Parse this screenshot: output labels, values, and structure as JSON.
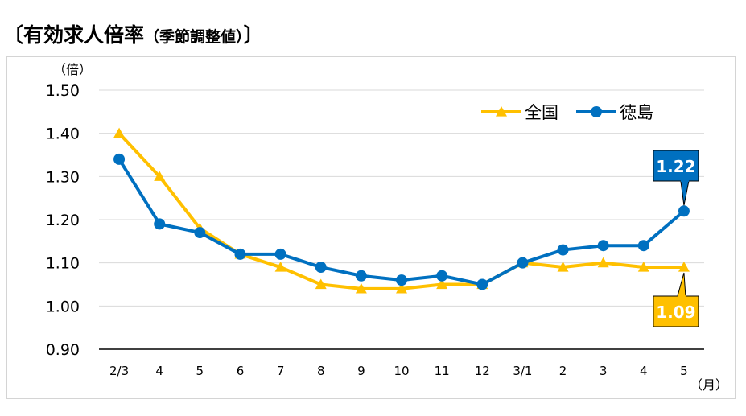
{
  "title": {
    "main": "〔有効求人倍率",
    "sub": "（季節調整値）",
    "close": "〕"
  },
  "chart_data": {
    "type": "line",
    "x": [
      "2/3",
      "4",
      "5",
      "6",
      "7",
      "8",
      "9",
      "10",
      "11",
      "12",
      "3/1",
      "2",
      "3",
      "4",
      "5"
    ],
    "series": [
      {
        "name": "全国",
        "color": "#FFC000",
        "values": [
          1.4,
          1.3,
          1.18,
          1.12,
          1.09,
          1.05,
          1.04,
          1.04,
          1.05,
          1.05,
          1.1,
          1.09,
          1.1,
          1.09,
          1.09
        ]
      },
      {
        "name": "徳島",
        "color": "#0070C0",
        "values": [
          1.34,
          1.19,
          1.17,
          1.12,
          1.12,
          1.09,
          1.07,
          1.06,
          1.07,
          1.05,
          1.1,
          1.13,
          1.14,
          1.14,
          1.22
        ]
      }
    ],
    "ylim": [
      0.9,
      1.5
    ],
    "yticks": [
      "0.90",
      "1.00",
      "1.10",
      "1.20",
      "1.30",
      "1.40",
      "1.50"
    ],
    "ylabel": "（倍）",
    "xlabel": "（月）",
    "grid": true,
    "legend_position": "top-right",
    "callouts": [
      {
        "series": "徳島",
        "label": "1.22",
        "bg": "#0070C0",
        "color": "#ffffff",
        "placement": "above"
      },
      {
        "series": "全国",
        "label": "1.09",
        "bg": "#FFC000",
        "color": "#ffffff",
        "placement": "below"
      }
    ]
  }
}
